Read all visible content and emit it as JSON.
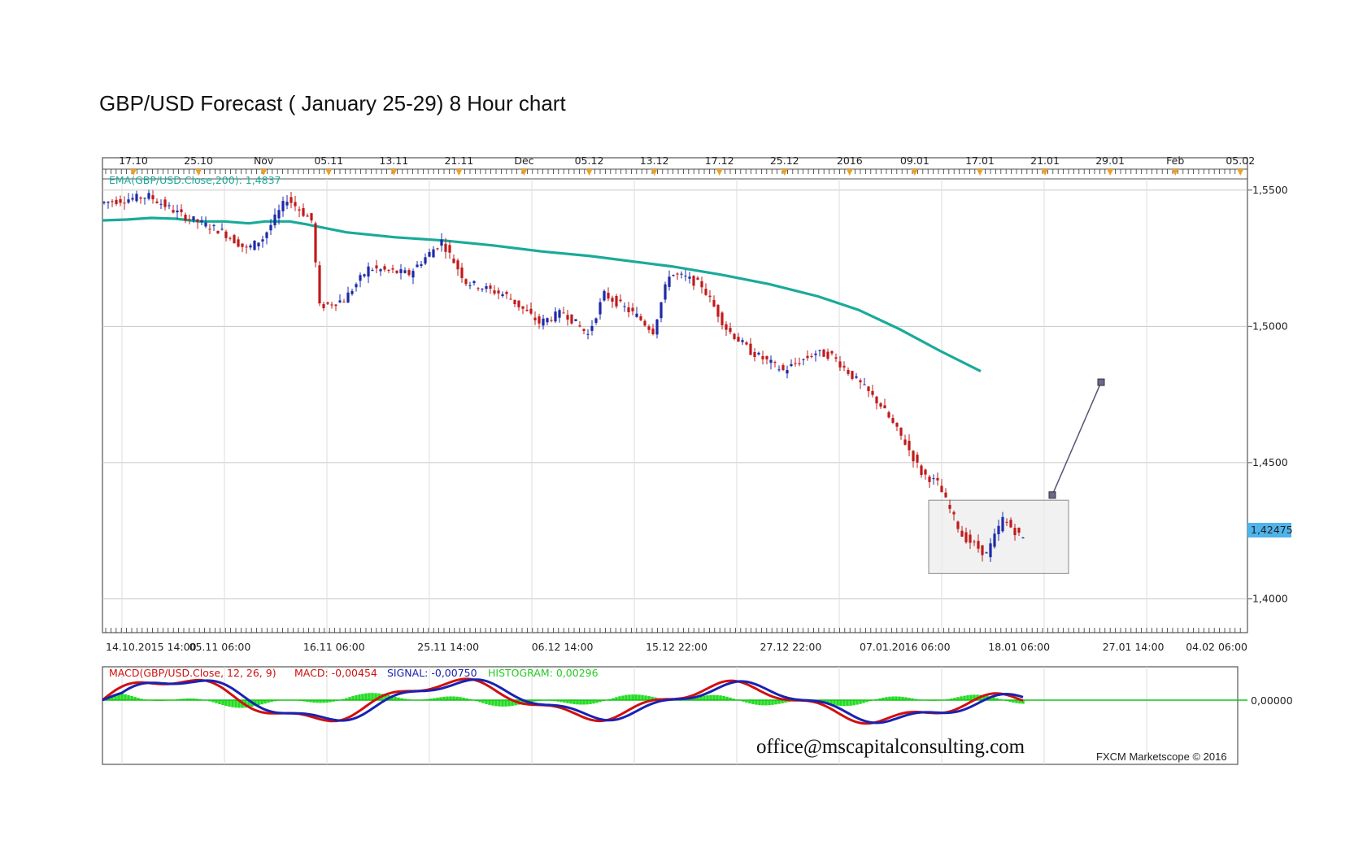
{
  "page": {
    "title": "GBP/USD Forecast ( January 25-29) 8 Hour chart"
  },
  "chart_data": [
    {
      "type": "candlestick",
      "ylim": [
        1.39,
        1.5565
      ],
      "ema_label": "EMA(GBP/USD.Close,200): 1,4837",
      "ema_color": "#1aaa9a",
      "up_color": "#1c2aa8",
      "down_color": "#c01a1a",
      "top_axis_ticks": [
        "17.10",
        "25.10",
        "Nov",
        "05.11",
        "13.11",
        "21.11",
        "Dec",
        "05.12",
        "13.12",
        "17.12",
        "25.12",
        "2016",
        "09.01",
        "17.01",
        "21.01",
        "29.01",
        "Feb",
        "05.02"
      ],
      "bottom_axis_ticks": [
        "14.10.2015 14:00",
        "05.11 06:00",
        "16.11 06:00",
        "25.11 14:00",
        "06.12 14:00",
        "15.12 22:00",
        "27.12 22:00",
        "07.01.2016 06:00",
        "18.01 06:00",
        "27.01 14:00",
        "04.02 06:00"
      ],
      "y_ticks": [
        "1,5500",
        "1,5000",
        "1,4500",
        "1,4000"
      ],
      "y_tick_values": [
        1.55,
        1.5,
        1.45,
        1.4
      ],
      "current_price": "1,42475",
      "current_price_value": 1.42475,
      "ema_points": [
        {
          "x": 0,
          "y": 1.5389
        },
        {
          "x": 30,
          "y": 1.5392
        },
        {
          "x": 60,
          "y": 1.5398
        },
        {
          "x": 90,
          "y": 1.5395
        },
        {
          "x": 120,
          "y": 1.5385
        },
        {
          "x": 150,
          "y": 1.5385
        },
        {
          "x": 180,
          "y": 1.5378
        },
        {
          "x": 200,
          "y": 1.5385
        },
        {
          "x": 230,
          "y": 1.5385
        },
        {
          "x": 250,
          "y": 1.5375
        },
        {
          "x": 300,
          "y": 1.5345
        },
        {
          "x": 360,
          "y": 1.5327
        },
        {
          "x": 420,
          "y": 1.5315
        },
        {
          "x": 480,
          "y": 1.5297
        },
        {
          "x": 540,
          "y": 1.5275
        },
        {
          "x": 600,
          "y": 1.5258
        },
        {
          "x": 660,
          "y": 1.5235
        },
        {
          "x": 700,
          "y": 1.522
        },
        {
          "x": 760,
          "y": 1.519
        },
        {
          "x": 820,
          "y": 1.5155
        },
        {
          "x": 880,
          "y": 1.511
        },
        {
          "x": 930,
          "y": 1.506
        },
        {
          "x": 980,
          "y": 1.499
        },
        {
          "x": 1030,
          "y": 1.491
        },
        {
          "x": 1080,
          "y": 1.4835
        }
      ],
      "forecast_line": {
        "from": {
          "x": 1168,
          "y": 1.4381
        },
        "to": {
          "x": 1228,
          "y": 1.4795
        }
      },
      "range_box": {
        "x_from": 1016,
        "x_to": 1188,
        "y_from": 1.4093,
        "y_to": 1.4362
      }
    },
    {
      "type": "macd",
      "label_macd_name": "MACD(GBP/USD.Close, 12, 26, 9)",
      "label_macd_value": "MACD: -0,00454",
      "label_signal": "SIGNAL: -0,00750",
      "label_histogram": "HISTOGRAM: 0,00296",
      "zero_label": "0,00000",
      "macd_color": "#d01010",
      "signal_color": "#1a22b0",
      "histogram_color": "#22dd22"
    }
  ],
  "watermark": "office@mscapitalconsulting.com",
  "credit": "FXCM Marketscope © 2016"
}
